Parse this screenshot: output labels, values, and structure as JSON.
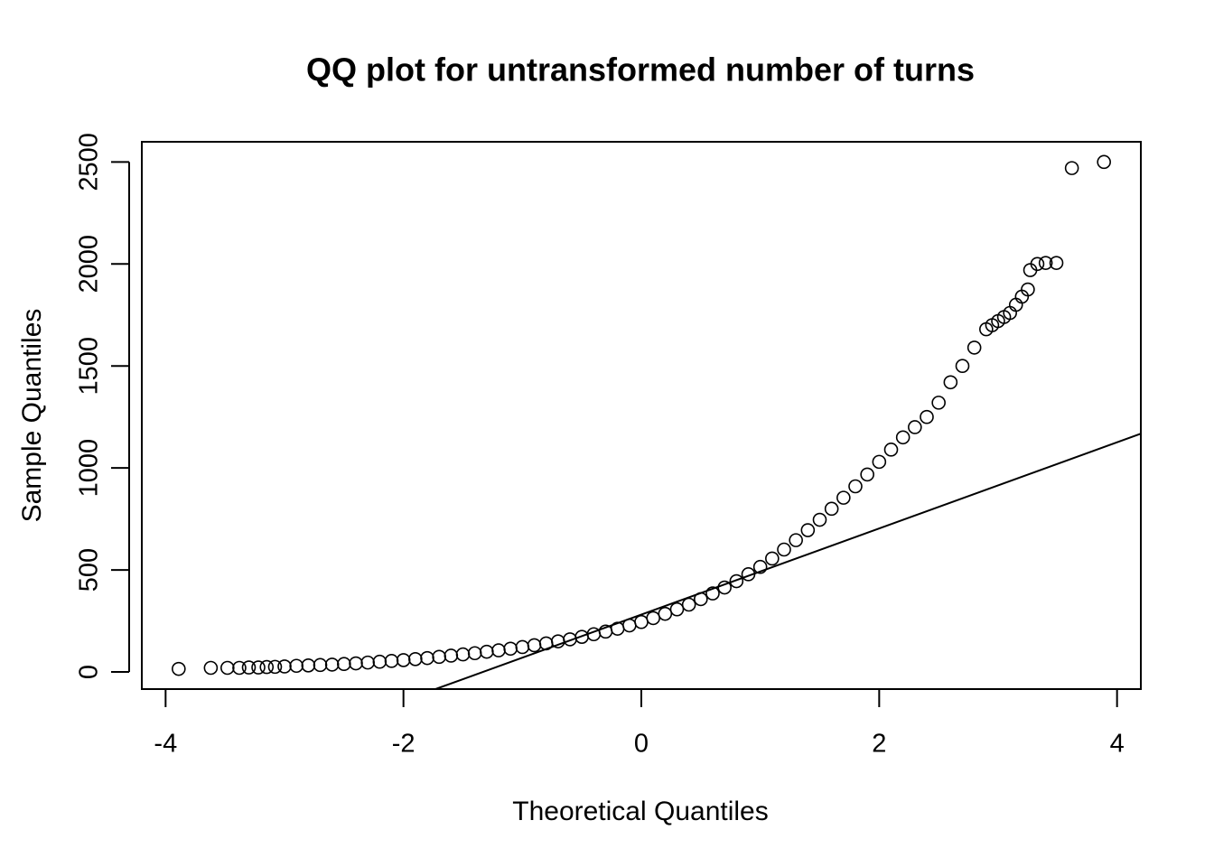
{
  "chart_data": {
    "type": "scatter",
    "title": "QQ plot for untransformed number of turns",
    "x_label": "Theoretical Quantiles",
    "y_label": "Sample Quantiles",
    "xlim": [
      -4.2,
      4.2
    ],
    "ylim": [
      -84,
      2599
    ],
    "xticks": [
      -4,
      -2,
      0,
      2,
      4
    ],
    "yticks": [
      0,
      500,
      1000,
      1500,
      2000,
      2500
    ],
    "color": "#000000",
    "x": [
      -3.89,
      -3.62,
      -3.48,
      -3.38,
      -3.3,
      -3.22,
      -3.15,
      -3.08,
      -3.0,
      -2.9,
      -2.8,
      -2.7,
      -2.6,
      -2.5,
      -2.4,
      -2.3,
      -2.2,
      -2.1,
      -2.0,
      -1.9,
      -1.8,
      -1.7,
      -1.6,
      -1.5,
      -1.4,
      -1.3,
      -1.2,
      -1.1,
      -1.0,
      -0.9,
      -0.8,
      -0.7,
      -0.6,
      -0.5,
      -0.4,
      -0.3,
      -0.2,
      -0.1,
      0,
      0.1,
      0.2,
      0.3,
      0.4,
      0.5,
      0.6,
      0.7,
      0.8,
      0.9,
      1.0,
      1.1,
      1.2,
      1.3,
      1.4,
      1.5,
      1.6,
      1.7,
      1.8,
      1.9,
      2.0,
      2.1,
      2.2,
      2.3,
      2.4,
      2.5,
      2.6,
      2.7,
      2.8,
      2.9,
      2.95,
      3.0,
      3.05,
      3.1,
      3.15,
      3.2,
      3.25,
      3.27,
      3.33,
      3.4,
      3.49,
      3.62,
      3.89
    ],
    "values": [
      15,
      20,
      20,
      20,
      22,
      22,
      24,
      25,
      27,
      30,
      32,
      34,
      36,
      39,
      42,
      46,
      50,
      54,
      58,
      63,
      68,
      74,
      80,
      86,
      92,
      99,
      106,
      114,
      122,
      131,
      140,
      150,
      160,
      172,
      185,
      198,
      212,
      228,
      245,
      264,
      285,
      307,
      330,
      357,
      385,
      414,
      445,
      479,
      515,
      556,
      600,
      646,
      695,
      746,
      800,
      854,
      910,
      968,
      1030,
      1090,
      1150,
      1200,
      1250,
      1320,
      1420,
      1500,
      1590,
      1680,
      1700,
      1720,
      1740,
      1760,
      1800,
      1840,
      1875,
      1970,
      2000,
      2005,
      2005,
      2470,
      2500
    ],
    "reference_line": {
      "x": [
        -1.73,
        4.2
      ],
      "y": [
        -84,
        1168
      ]
    }
  }
}
